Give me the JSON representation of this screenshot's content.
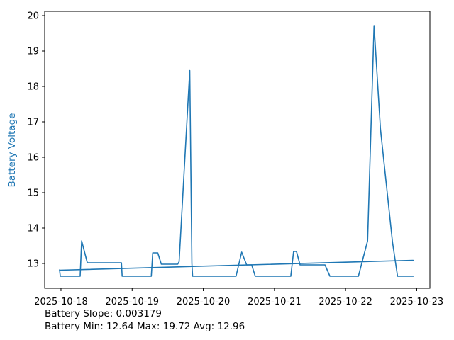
{
  "figure": {
    "background": "#ffffff",
    "annotations": {
      "slope_line": "Battery Slope: 0.003179",
      "stats_line": "Battery Min: 12.64 Max: 19.72 Avg: 12.96"
    }
  },
  "chart_data": {
    "type": "line",
    "title": "",
    "xlabel": "",
    "ylabel": "Battery Voltage",
    "ylabel_color": "#1f77b4",
    "line_color": "#1f77b4",
    "axis_color": "#000000",
    "grid": false,
    "legend": null,
    "x_unit": "days since 2025-10-18 00:00",
    "xlim": [
      -0.229,
      5.185
    ],
    "ylim": [
      12.3,
      20.12
    ],
    "y_ticks": [
      13,
      14,
      15,
      16,
      17,
      18,
      19,
      20
    ],
    "x_ticks": [
      {
        "day": 0,
        "label": "2025-10-18"
      },
      {
        "day": 1,
        "label": "2025-10-19"
      },
      {
        "day": 2,
        "label": "2025-10-20"
      },
      {
        "day": 3,
        "label": "2025-10-21"
      },
      {
        "day": 4,
        "label": "2025-10-22"
      },
      {
        "day": 5,
        "label": "2025-10-23"
      }
    ],
    "series": [
      {
        "name": "battery-voltage",
        "points": [
          [
            -0.02,
            12.82
          ],
          [
            -0.01,
            12.64
          ],
          [
            0.27,
            12.64
          ],
          [
            0.29,
            13.64
          ],
          [
            0.37,
            13.02
          ],
          [
            0.85,
            13.02
          ],
          [
            0.86,
            12.64
          ],
          [
            1.27,
            12.64
          ],
          [
            1.29,
            13.3
          ],
          [
            1.36,
            13.3
          ],
          [
            1.41,
            12.98
          ],
          [
            1.64,
            12.98
          ],
          [
            1.66,
            13.05
          ],
          [
            1.81,
            18.45
          ],
          [
            1.84,
            13.0
          ],
          [
            1.85,
            12.64
          ],
          [
            2.46,
            12.64
          ],
          [
            2.54,
            13.32
          ],
          [
            2.61,
            12.96
          ],
          [
            2.68,
            12.96
          ],
          [
            2.73,
            12.64
          ],
          [
            3.23,
            12.64
          ],
          [
            3.27,
            13.34
          ],
          [
            3.31,
            13.34
          ],
          [
            3.36,
            12.96
          ],
          [
            3.71,
            12.96
          ],
          [
            3.78,
            12.64
          ],
          [
            4.18,
            12.64
          ],
          [
            4.31,
            13.64
          ],
          [
            4.4,
            19.72
          ],
          [
            4.49,
            16.8
          ],
          [
            4.66,
            13.6
          ],
          [
            4.73,
            12.64
          ],
          [
            4.95,
            12.64
          ]
        ]
      },
      {
        "name": "trend",
        "points": [
          [
            -0.02,
            12.81
          ],
          [
            4.95,
            13.09
          ]
        ]
      }
    ],
    "stats": {
      "slope": 0.003179,
      "min": 12.64,
      "max": 19.72,
      "avg": 12.96
    }
  }
}
